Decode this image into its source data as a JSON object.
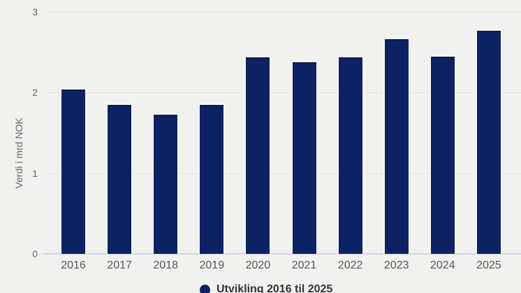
{
  "chart_data": {
    "type": "bar",
    "title": "",
    "categories": [
      "2016",
      "2017",
      "2018",
      "2019",
      "2020",
      "2021",
      "2022",
      "2023",
      "2024",
      "2025"
    ],
    "values": [
      2.05,
      1.86,
      1.74,
      1.86,
      2.45,
      2.39,
      2.45,
      2.68,
      2.46,
      2.78
    ],
    "xlabel": "",
    "ylabel": "Verdi i mrd NOK",
    "yticks": [
      0,
      1,
      2,
      3
    ],
    "ylim": [
      0,
      3
    ],
    "grid": "horizontal",
    "legend_position": "bottom-center",
    "legend": [
      {
        "label": "Utvikling 2016 til 2025",
        "marker": "circle"
      }
    ],
    "colors": {
      "bar_fill": "#0c2263",
      "bar_top_edge": "#0a1b4d",
      "bar_border": "#f8f9f6",
      "background": "#f1f2ef",
      "gridline": "#e4e5e2",
      "axis_line": "#ccd5ea",
      "tick_text": "#666666",
      "x_label_text": "#555555",
      "legend_text": "#333333"
    }
  }
}
